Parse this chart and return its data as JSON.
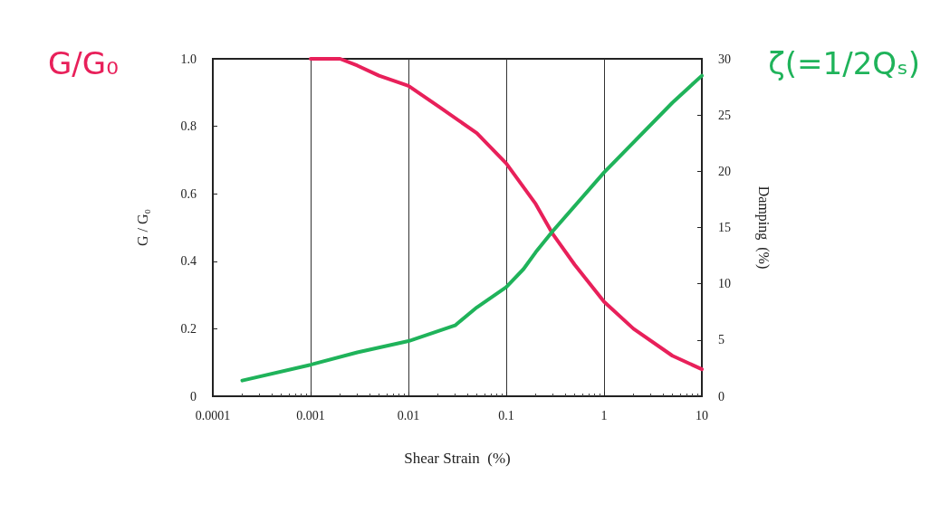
{
  "chart_data": {
    "type": "line",
    "xlabel": "Shear Strain  (%)",
    "ylabel": "G / G₀",
    "y2label": "Damping  (%)",
    "annotations": [
      "G/G₀",
      "ζ(=1/2Qₛ)"
    ],
    "log": "x",
    "grid": "x",
    "marker": "none",
    "line_style": "solid",
    "xlim": [
      0.0001,
      10
    ],
    "xticks": [
      0.0001,
      0.001,
      0.01,
      0.1,
      1,
      10
    ],
    "ylim": [
      0,
      1
    ],
    "yticks": [
      0,
      0.2,
      0.4,
      0.6,
      0.8,
      {
        "value": 1,
        "label": "1.0"
      }
    ],
    "y2lim": [
      0,
      30
    ],
    "y2ticks": [
      0,
      5,
      10,
      15,
      20,
      25,
      30
    ],
    "series": [
      {
        "color": "#e8205a",
        "x": [
          0.001,
          0.002,
          0.003,
          0.005,
          0.01,
          0.02,
          0.05,
          0.1,
          0.2,
          0.3,
          0.5,
          1,
          2,
          5,
          10
        ],
        "values": [
          1,
          1,
          0.98,
          0.95,
          0.92,
          0.86,
          0.78,
          0.69,
          0.57,
          0.48,
          0.39,
          0.28,
          0.2,
          0.12,
          0.08
        ]
      },
      {
        "color": "#1fb35a",
        "axis": "y2",
        "x": [
          0.0002,
          0.001,
          0.003,
          0.01,
          0.03,
          0.05,
          0.1,
          0.15,
          0.2,
          0.3,
          1,
          5,
          10
        ],
        "values": [
          1.4,
          2.8,
          3.9,
          4.9,
          6.3,
          7.9,
          9.7,
          11.3,
          12.8,
          14.7,
          19.9,
          26.1,
          28.5
        ]
      }
    ]
  }
}
